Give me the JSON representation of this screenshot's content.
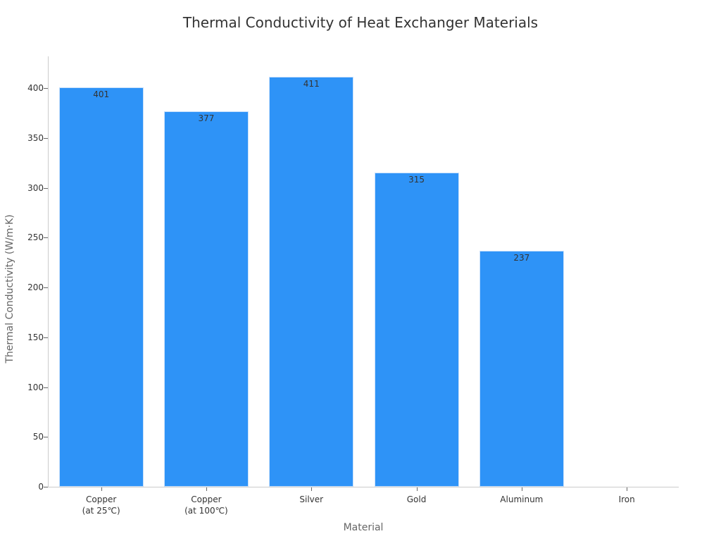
{
  "chart_data": {
    "type": "bar",
    "title": "Thermal Conductivity of Heat Exchanger Materials",
    "xlabel": "Material",
    "ylabel": "Thermal Conductivity (W/m·K)",
    "categories": [
      "Copper\n(at 25℃)",
      "Copper\n(at 100℃)",
      "Silver",
      "Gold",
      "Aluminum",
      "Iron"
    ],
    "values": [
      401,
      377,
      411,
      315,
      237,
      0
    ],
    "data_labels": [
      "401",
      "377",
      "411",
      "315",
      "237",
      ""
    ],
    "yticks": [
      0,
      50,
      100,
      150,
      200,
      250,
      300,
      350,
      400
    ],
    "ylim": [
      0,
      432
    ],
    "grid": false,
    "legend": null,
    "bar_color": "#2e93f7"
  }
}
